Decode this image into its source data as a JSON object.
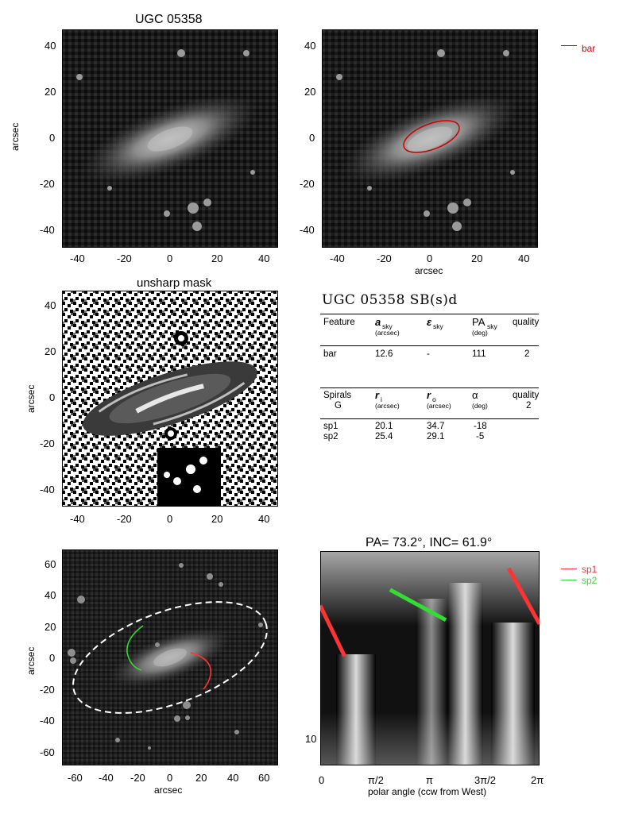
{
  "galaxy": "UGC 05358",
  "panel_titles": {
    "image": "UGC 05358",
    "unsharp": "unsharp mask",
    "polar": "PA=  73.2°, INC=  61.9°"
  },
  "axis_labels": {
    "arcsec": "arcsec",
    "polar_x": "polar angle (ccw from West)"
  },
  "ticks": {
    "top_left_x": [
      "-40",
      "-20",
      "0",
      "20",
      "40"
    ],
    "top_left_y": [
      "40",
      "20",
      "0",
      "-20",
      "-40"
    ],
    "top_right_x": [
      "-40",
      "-20",
      "0",
      "20",
      "40"
    ],
    "top_right_y": [
      "40",
      "20",
      "0",
      "-20",
      "-40"
    ],
    "mid_x": [
      "-40",
      "-20",
      "0",
      "20",
      "40"
    ],
    "mid_y": [
      "40",
      "20",
      "0",
      "-20",
      "-40"
    ],
    "bottom_left_x": [
      "-60",
      "-40",
      "-20",
      "0",
      "20",
      "40",
      "60"
    ],
    "bottom_left_y": [
      "60",
      "40",
      "20",
      "0",
      "-20",
      "-40",
      "-60"
    ],
    "polar_x": [
      "0",
      "π/2",
      "π",
      "3π/2",
      "2π"
    ],
    "polar_y": [
      "10"
    ]
  },
  "legends": {
    "bar": {
      "label": "bar",
      "color": "#cc0000"
    },
    "sp1": {
      "label": "sp1",
      "color": "#ff3333"
    },
    "sp2": {
      "label": "sp2",
      "color": "#33dd33"
    }
  },
  "summary": {
    "title": "UGC 05358  SB(s)d",
    "bar_table": {
      "headers": [
        {
          "main": "Feature",
          "sub": ""
        },
        {
          "main": "a",
          "sub": "sky",
          "unit": "(arcsec)"
        },
        {
          "main": "ε",
          "sub": "sky",
          "unit": ""
        },
        {
          "main": "PA",
          "sub": "sky",
          "unit": "(deg)"
        },
        {
          "main": "quality",
          "sub": ""
        }
      ],
      "row": {
        "feature": "bar",
        "a": "12.6",
        "e": "-",
        "pa": "111",
        "quality": "2"
      }
    },
    "spiral_table": {
      "headers": [
        {
          "main": "Spirals",
          "line2": "G"
        },
        {
          "main": "r",
          "sub": "i",
          "unit": "(arcsec)"
        },
        {
          "main": "r",
          "sub": "o",
          "unit": "(arcsec)"
        },
        {
          "main": "α",
          "unit": "(deg)"
        },
        {
          "main": "quality",
          "line2": "2"
        }
      ],
      "rows": [
        {
          "name": "sp1",
          "ri": "20.1",
          "ro": "34.7",
          "alpha": "-18"
        },
        {
          "name": "sp2",
          "ri": "25.4",
          "ro": "29.1",
          "alpha": "-5"
        }
      ]
    }
  },
  "chart_data": [
    {
      "type": "image",
      "title": "UGC 05358",
      "xlabel": "",
      "ylabel": "arcsec",
      "xlim": [
        -47,
        47
      ],
      "ylim": [
        -47,
        47
      ]
    },
    {
      "type": "image",
      "title": "",
      "xlabel": "arcsec",
      "ylabel": "",
      "xlim": [
        -47,
        47
      ],
      "ylim": [
        -47,
        47
      ],
      "overlay": {
        "name": "bar",
        "center": [
          0,
          0
        ],
        "semi_major": 12.6,
        "pa_deg": 111
      }
    },
    {
      "type": "image",
      "title": "unsharp mask",
      "xlabel": "",
      "ylabel": "arcsec",
      "xlim": [
        -47,
        47
      ],
      "ylim": [
        -47,
        47
      ]
    },
    {
      "type": "image",
      "title": "",
      "xlabel": "arcsec",
      "ylabel": "arcsec",
      "xlim": [
        -68,
        68
      ],
      "ylim": [
        -68,
        68
      ]
    },
    {
      "type": "line",
      "title": "PA=  73.2°, INC=  61.9°",
      "xlabel": "polar angle (ccw from West)",
      "ylabel": "",
      "xlim": [
        0,
        6.283
      ],
      "yscale": "log",
      "series": [
        {
          "name": "sp1",
          "segments": [
            [
              [
                0.0,
                33.0
              ],
              [
                0.7,
                21.0
              ]
            ],
            [
              [
                5.4,
                46.0
              ],
              [
                6.283,
                28.0
              ]
            ]
          ]
        },
        {
          "name": "sp2",
          "segments": [
            [
              [
                2.0,
                38.0
              ],
              [
                3.6,
                29.0
              ]
            ]
          ]
        }
      ]
    }
  ]
}
